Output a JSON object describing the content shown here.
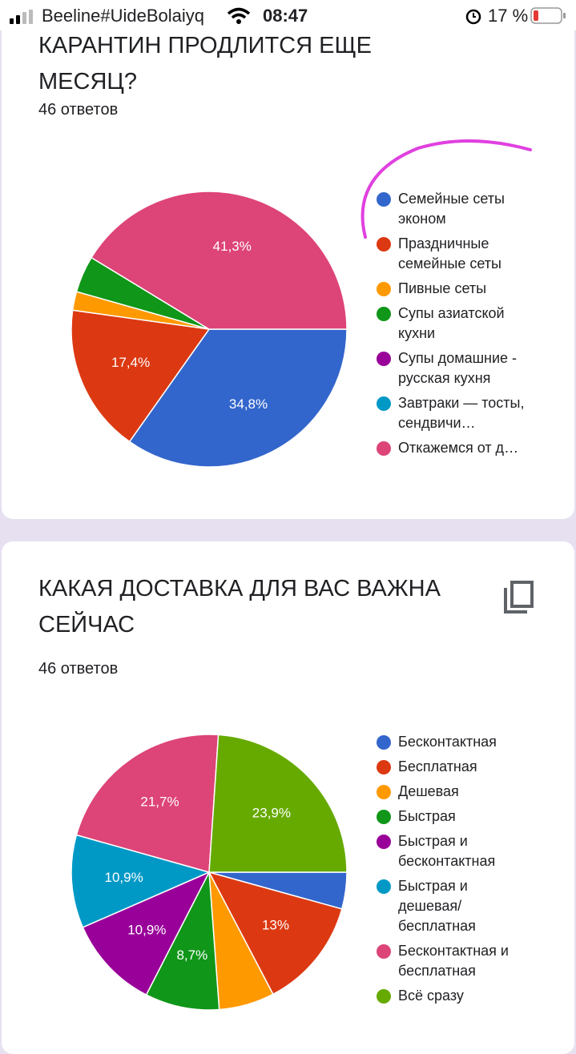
{
  "status_bar": {
    "carrier": "Beeline#UideBolaiyq",
    "time": "08:47",
    "battery": "17 %"
  },
  "chart_data": [
    {
      "type": "pie",
      "title": "КАРАНТИН ПРОДЛИТСЯ ЕЩЕ МЕСЯЦ?",
      "subtitle": "46 ответов",
      "categories": [
        "Семейные сеты эконом",
        "Праздничные семейные сеты",
        "Пивные сеты",
        "Супы азиатской кухни",
        "Супы домашние - русская кухня",
        "Завтраки — тосты, сендвичи…",
        "Откажемся от д…"
      ],
      "values": [
        34.8,
        17.4,
        2.2,
        4.3,
        0,
        0,
        41.3
      ],
      "value_labels": [
        "34,8%",
        "17,4%",
        null,
        null,
        null,
        null,
        "41,3%"
      ],
      "colors": [
        "#3366cc",
        "#dc3912",
        "#ff9900",
        "#109618",
        "#990099",
        "#0099c6",
        "#dd4477"
      ]
    },
    {
      "type": "pie",
      "title": "КАКАЯ ДОСТАВКА ДЛЯ ВАС ВАЖНА СЕЙЧАС",
      "subtitle": "46 ответов",
      "categories": [
        "Бесконтактная",
        "Бесплатная",
        "Дешевая",
        "Быстрая",
        "Быстрая и бесконтактная",
        "Быстрая и дешевая/ бесплатная",
        "Бесконтактная и бесплатная",
        "Всё сразу"
      ],
      "values": [
        4.3,
        13,
        6.5,
        8.7,
        10.9,
        10.9,
        21.7,
        23.9
      ],
      "value_labels": [
        null,
        "13%",
        null,
        "8,7%",
        "10,9%",
        "10,9%",
        "21,7%",
        "23,9%"
      ],
      "colors": [
        "#3366cc",
        "#dc3912",
        "#ff9900",
        "#109618",
        "#990099",
        "#0099c6",
        "#dd4477",
        "#66aa00"
      ]
    }
  ]
}
